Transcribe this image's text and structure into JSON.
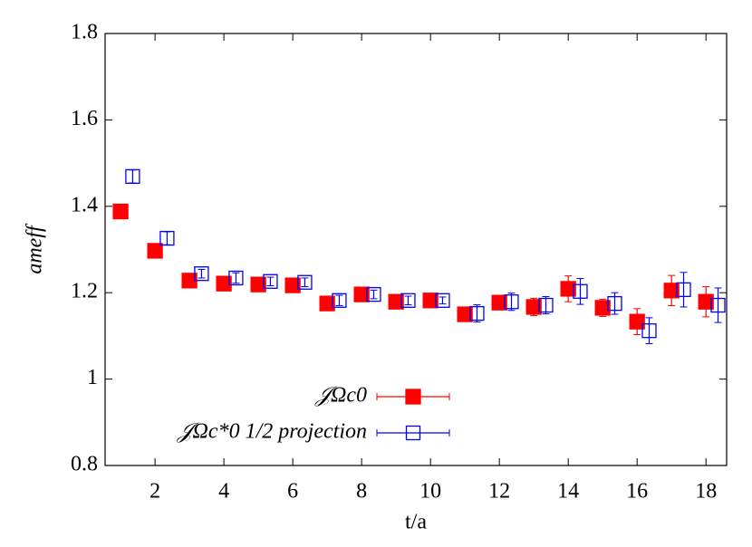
{
  "chart_data": {
    "type": "scatter",
    "x_label": "t/a",
    "y_label": "ameff",
    "xlim": [
      0.55,
      18.6
    ],
    "ylim": [
      0.8,
      1.8
    ],
    "xticks": [
      2,
      4,
      6,
      8,
      10,
      12,
      14,
      16,
      18
    ],
    "yticks": [
      0.8,
      1,
      1.2,
      1.4,
      1.6,
      1.8
    ],
    "legend": "bottom center",
    "series": [
      {
        "name": "𝒥Ωc0",
        "color": "#ff0000",
        "marker": "filled-square",
        "x": [
          1,
          2,
          3,
          4,
          5,
          6,
          7,
          8,
          9,
          10,
          11,
          12,
          13,
          14,
          15,
          16,
          17,
          18
        ],
        "values": [
          1.388,
          1.297,
          1.228,
          1.221,
          1.219,
          1.217,
          1.175,
          1.196,
          1.179,
          1.182,
          1.15,
          1.177,
          1.167,
          1.209,
          1.165,
          1.133,
          1.205,
          1.179
        ],
        "errors": [
          0.005,
          0.004,
          0.004,
          0.004,
          0.004,
          0.004,
          0.005,
          0.005,
          0.006,
          0.006,
          0.008,
          0.01,
          0.02,
          0.03,
          0.02,
          0.03,
          0.035,
          0.035
        ]
      },
      {
        "name": "𝒥Ωc*0 1/2 projection",
        "color": "#0000ff",
        "marker": "open-square",
        "x": [
          1.35,
          2.35,
          3.35,
          4.35,
          5.35,
          6.35,
          7.35,
          8.35,
          9.35,
          10.35,
          11.35,
          12.35,
          13.35,
          14.35,
          15.35,
          16.35,
          17.35,
          18.35
        ],
        "values": [
          1.469,
          1.326,
          1.244,
          1.234,
          1.226,
          1.224,
          1.182,
          1.196,
          1.182,
          1.182,
          1.152,
          1.179,
          1.171,
          1.203,
          1.175,
          1.112,
          1.207,
          1.171
        ],
        "errors": [
          0.015,
          0.015,
          0.01,
          0.012,
          0.01,
          0.01,
          0.012,
          0.01,
          0.01,
          0.008,
          0.02,
          0.02,
          0.02,
          0.03,
          0.025,
          0.03,
          0.04,
          0.04
        ]
      }
    ]
  }
}
